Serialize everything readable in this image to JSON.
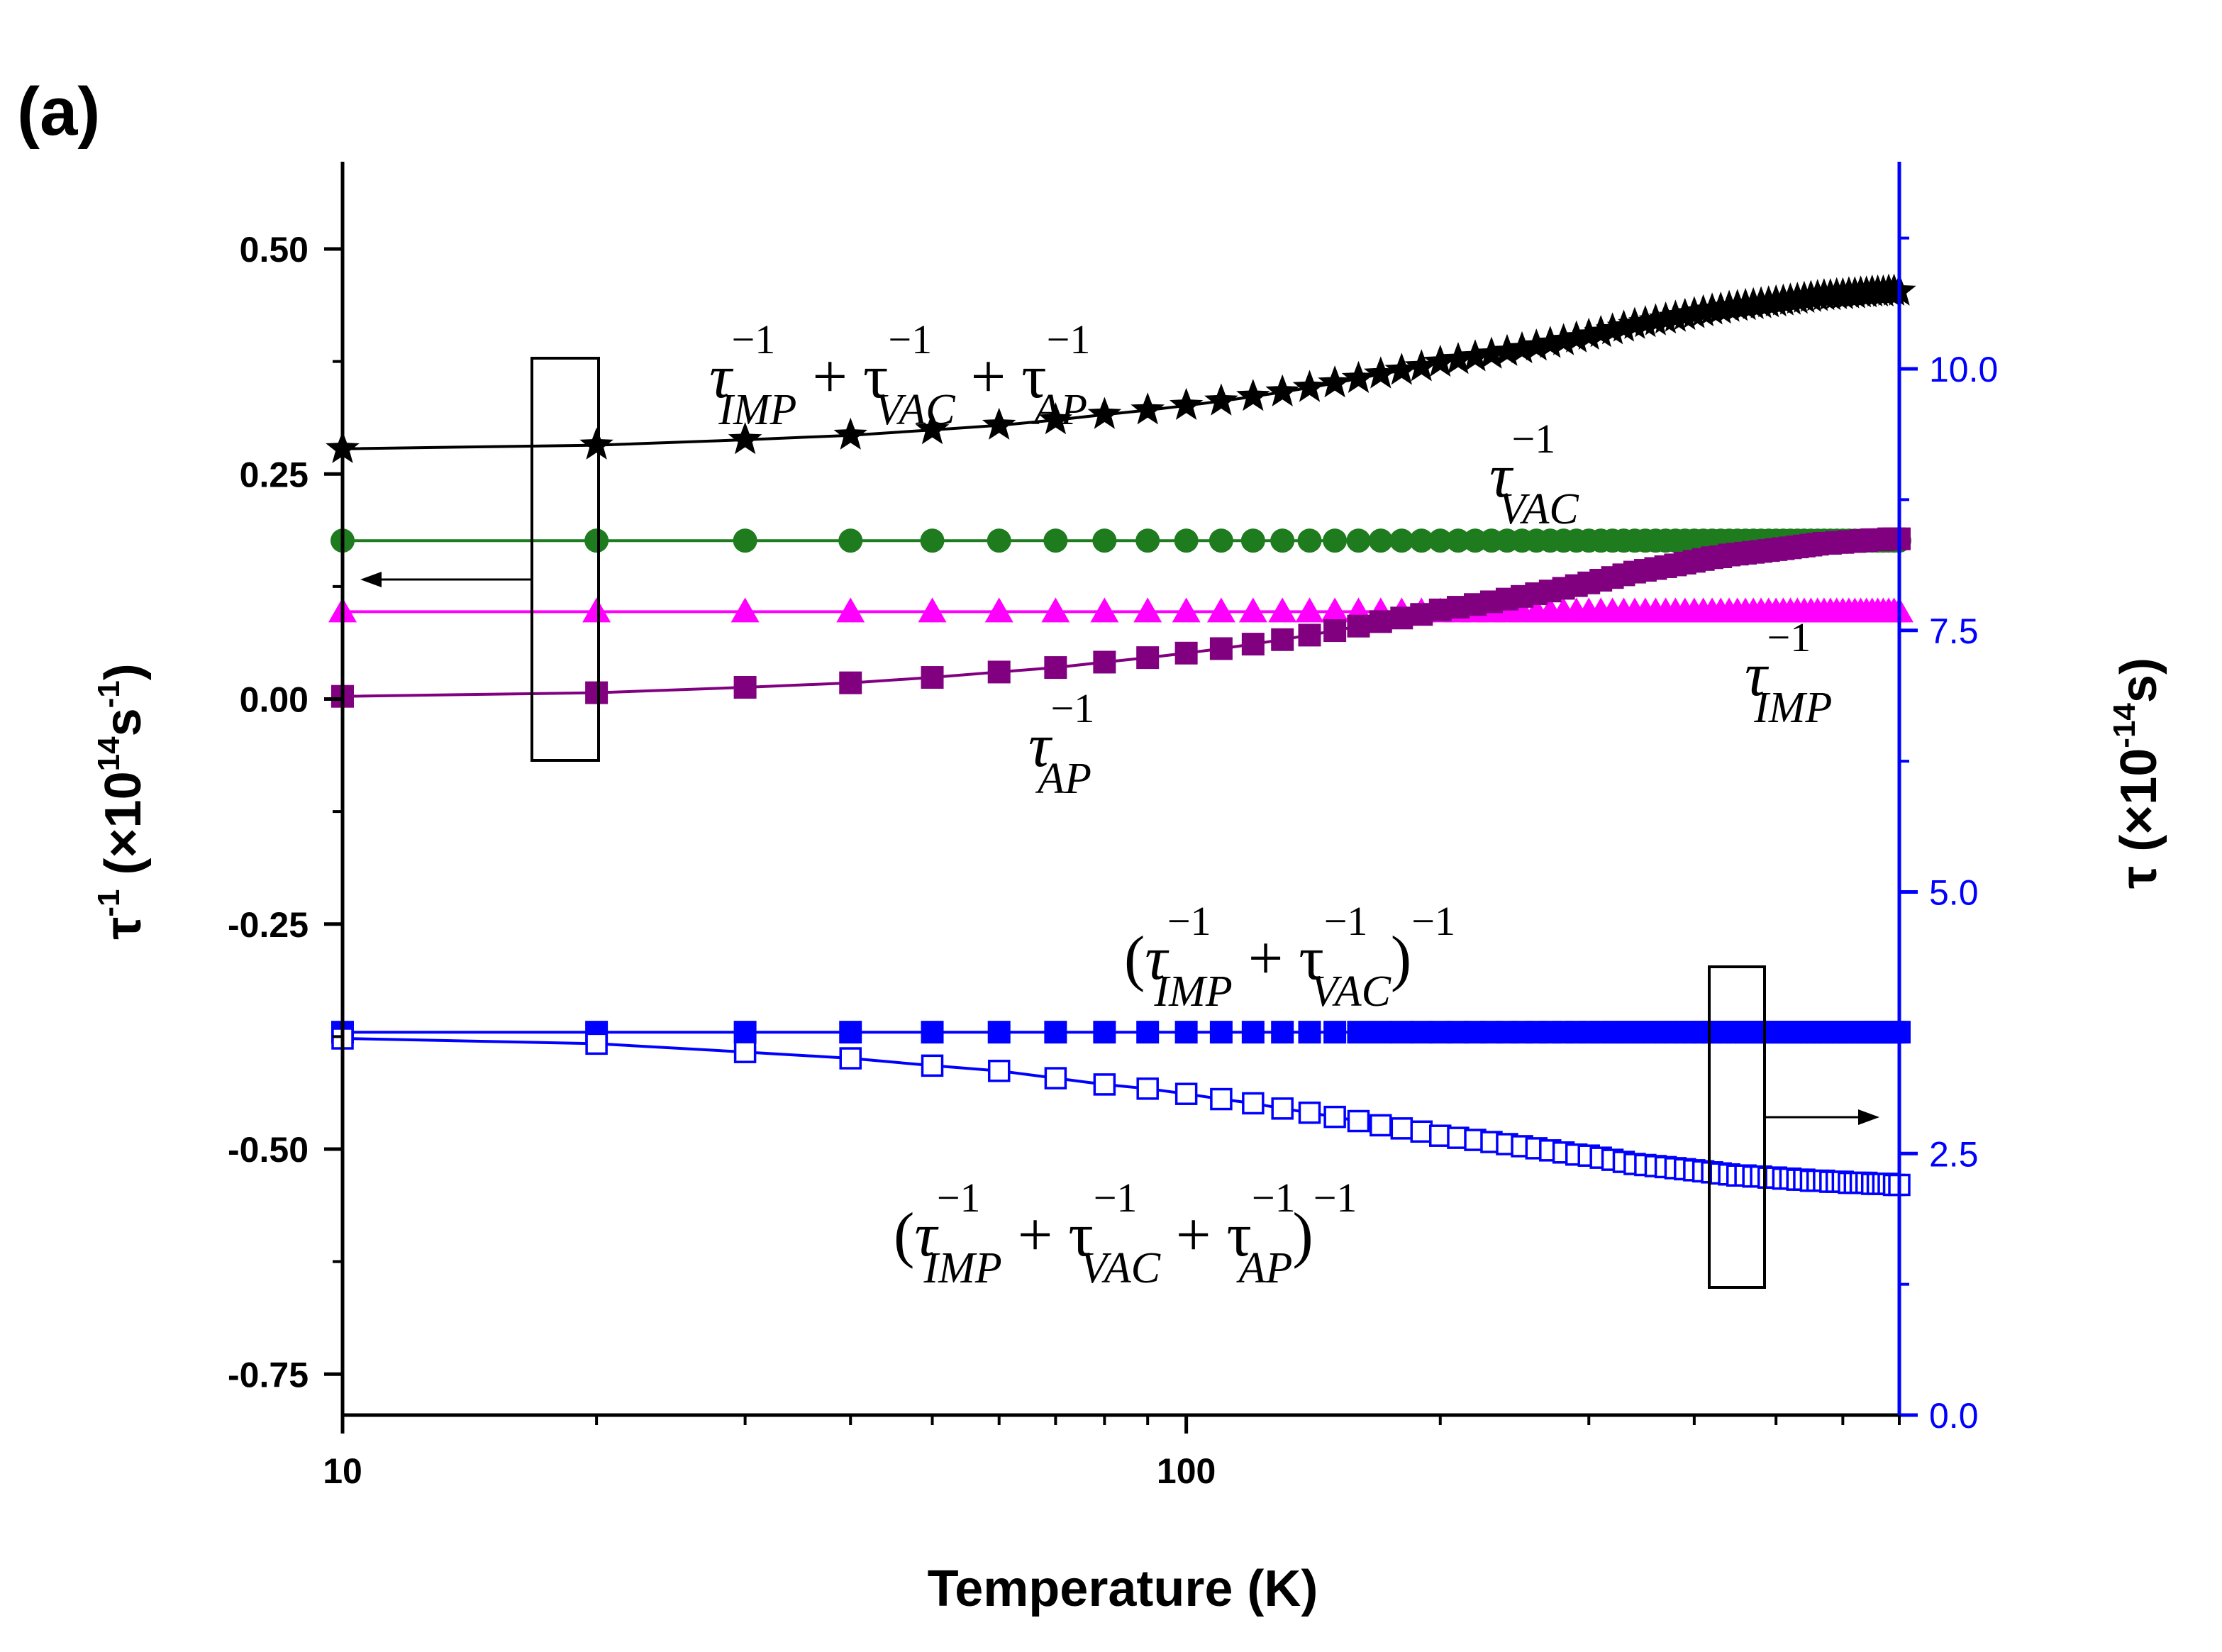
{
  "figure": {
    "panel_label": "(a)"
  },
  "colors": {
    "total_inverse": "#000000",
    "vac_inverse": "#1e7b1e",
    "imp_inverse": "#ff00ff",
    "ap_inverse": "#800080",
    "tau_filled": "#0000ff",
    "tau_open": "#0000ff",
    "right_axis": "#0000ff"
  },
  "chart_data": {
    "type": "line",
    "x_scale": "log",
    "xlabel": "Temperature (K)",
    "xlim": [
      10,
      700
    ],
    "xticks": [
      10,
      100
    ],
    "xtick_labels": [
      "10",
      "100"
    ],
    "ylabel_left": {
      "base": "τ",
      "sup1": "-1",
      "mid": " (×10",
      "sup2": "14",
      "unit": "s",
      "sup3": "-1",
      "end": ")"
    },
    "ylabel_right": {
      "base": "τ (×10",
      "sup": "-14",
      "end": "s)"
    },
    "ylim_left": [
      -0.8,
      0.6
    ],
    "ylim_right": [
      0.0,
      12.0
    ],
    "yticks_left": [
      -0.75,
      -0.5,
      -0.25,
      0.0,
      0.25,
      0.5
    ],
    "ytick_labels_left": [
      "-0.75",
      "-0.50",
      "-0.25",
      "0.00",
      "0.25",
      "0.50"
    ],
    "yticks_right": [
      0.0,
      2.5,
      5.0,
      7.5,
      10.0
    ],
    "ytick_labels_right": [
      "0.0",
      "2.5",
      "5.0",
      "7.5",
      "10.0"
    ],
    "x": [
      10,
      20,
      30,
      40,
      50,
      60,
      70,
      80,
      90,
      100,
      110,
      120,
      130,
      140,
      150,
      160,
      170,
      180,
      190,
      200,
      210,
      220,
      230,
      240,
      250,
      260,
      270,
      280,
      290,
      300,
      310,
      320,
      330,
      340,
      350,
      360,
      370,
      380,
      390,
      400,
      410,
      420,
      430,
      440,
      450,
      460,
      470,
      480,
      490,
      500,
      510,
      520,
      530,
      540,
      550,
      560,
      570,
      580,
      590,
      600,
      610,
      620,
      630,
      640,
      650,
      660,
      670,
      680,
      690,
      700
    ],
    "series": [
      {
        "name": "τ_IMP^-1 + τ_VAC^-1 + τ_AP^-1",
        "axis": "left",
        "marker": "star",
        "filled": true,
        "color_key": "total_inverse",
        "values": [
          0.278,
          0.282,
          0.288,
          0.293,
          0.299,
          0.304,
          0.31,
          0.316,
          0.321,
          0.326,
          0.331,
          0.336,
          0.341,
          0.346,
          0.351,
          0.356,
          0.361,
          0.365,
          0.369,
          0.374,
          0.377,
          0.38,
          0.383,
          0.386,
          0.389,
          0.392,
          0.395,
          0.398,
          0.401,
          0.404,
          0.407,
          0.41,
          0.413,
          0.416,
          0.418,
          0.42,
          0.422,
          0.424,
          0.426,
          0.428,
          0.43,
          0.432,
          0.433,
          0.435,
          0.436,
          0.437,
          0.438,
          0.439,
          0.44,
          0.441,
          0.442,
          0.443,
          0.444,
          0.445,
          0.446,
          0.447,
          0.448,
          0.448,
          0.449,
          0.449,
          0.45,
          0.45,
          0.451,
          0.451,
          0.452,
          0.452,
          0.452,
          0.453,
          0.453,
          0.453
        ]
      },
      {
        "name": "τ_VAC^-1",
        "axis": "left",
        "marker": "circle",
        "filled": true,
        "color_key": "vac_inverse",
        "values": [
          0.176,
          0.176,
          0.176,
          0.176,
          0.176,
          0.176,
          0.176,
          0.176,
          0.176,
          0.176,
          0.176,
          0.176,
          0.176,
          0.176,
          0.176,
          0.176,
          0.176,
          0.176,
          0.176,
          0.176,
          0.176,
          0.176,
          0.176,
          0.176,
          0.176,
          0.176,
          0.176,
          0.176,
          0.176,
          0.176,
          0.176,
          0.176,
          0.176,
          0.176,
          0.176,
          0.176,
          0.176,
          0.176,
          0.176,
          0.176,
          0.176,
          0.176,
          0.176,
          0.176,
          0.176,
          0.176,
          0.176,
          0.176,
          0.176,
          0.176,
          0.176,
          0.176,
          0.176,
          0.176,
          0.176,
          0.176,
          0.176,
          0.176,
          0.176,
          0.176,
          0.176,
          0.176,
          0.176,
          0.176,
          0.176,
          0.176,
          0.176,
          0.176,
          0.176,
          0.176
        ]
      },
      {
        "name": "τ_IMP^-1",
        "axis": "left",
        "marker": "triangle",
        "filled": true,
        "color_key": "imp_inverse",
        "values": [
          0.097,
          0.097,
          0.097,
          0.097,
          0.097,
          0.097,
          0.097,
          0.097,
          0.097,
          0.097,
          0.097,
          0.097,
          0.097,
          0.097,
          0.097,
          0.097,
          0.097,
          0.097,
          0.097,
          0.097,
          0.097,
          0.097,
          0.097,
          0.097,
          0.097,
          0.097,
          0.097,
          0.097,
          0.097,
          0.097,
          0.097,
          0.097,
          0.097,
          0.097,
          0.097,
          0.097,
          0.097,
          0.097,
          0.097,
          0.097,
          0.097,
          0.097,
          0.097,
          0.097,
          0.097,
          0.097,
          0.097,
          0.097,
          0.097,
          0.097,
          0.097,
          0.097,
          0.097,
          0.097,
          0.097,
          0.097,
          0.097,
          0.097,
          0.097,
          0.097,
          0.097,
          0.097,
          0.097,
          0.097,
          0.097,
          0.097,
          0.097,
          0.097,
          0.097,
          0.097
        ]
      },
      {
        "name": "τ_AP^-1",
        "axis": "left",
        "marker": "square",
        "filled": true,
        "color_key": "ap_inverse",
        "values": [
          0.003,
          0.007,
          0.013,
          0.018,
          0.024,
          0.03,
          0.035,
          0.041,
          0.046,
          0.051,
          0.056,
          0.061,
          0.066,
          0.071,
          0.076,
          0.081,
          0.086,
          0.09,
          0.094,
          0.099,
          0.102,
          0.105,
          0.108,
          0.111,
          0.114,
          0.117,
          0.12,
          0.123,
          0.126,
          0.129,
          0.132,
          0.135,
          0.138,
          0.141,
          0.143,
          0.145,
          0.147,
          0.149,
          0.151,
          0.153,
          0.155,
          0.157,
          0.158,
          0.16,
          0.161,
          0.162,
          0.163,
          0.164,
          0.165,
          0.166,
          0.167,
          0.168,
          0.169,
          0.17,
          0.171,
          0.172,
          0.173,
          0.173,
          0.174,
          0.174,
          0.175,
          0.175,
          0.176,
          0.176,
          0.177,
          0.177,
          0.177,
          0.178,
          0.178,
          0.178
        ]
      },
      {
        "name": "(τ_IMP^-1 + τ_VAC^-1)^-1",
        "axis": "right",
        "marker": "square",
        "filled": true,
        "color_key": "tau_filled",
        "values": [
          3.66,
          3.66,
          3.66,
          3.66,
          3.66,
          3.66,
          3.66,
          3.66,
          3.66,
          3.66,
          3.66,
          3.66,
          3.66,
          3.66,
          3.66,
          3.66,
          3.66,
          3.66,
          3.66,
          3.66,
          3.66,
          3.66,
          3.66,
          3.66,
          3.66,
          3.66,
          3.66,
          3.66,
          3.66,
          3.66,
          3.66,
          3.66,
          3.66,
          3.66,
          3.66,
          3.66,
          3.66,
          3.66,
          3.66,
          3.66,
          3.66,
          3.66,
          3.66,
          3.66,
          3.66,
          3.66,
          3.66,
          3.66,
          3.66,
          3.66,
          3.66,
          3.66,
          3.66,
          3.66,
          3.66,
          3.66,
          3.66,
          3.66,
          3.66,
          3.66,
          3.66,
          3.66,
          3.66,
          3.66,
          3.66,
          3.66,
          3.66,
          3.66,
          3.66,
          3.66
        ]
      },
      {
        "name": "(τ_IMP^-1 + τ_VAC^-1 + τ_AP^-1)^-1",
        "axis": "right",
        "marker": "square",
        "filled": false,
        "color_key": "tau_open",
        "values": [
          3.6,
          3.55,
          3.47,
          3.41,
          3.34,
          3.29,
          3.22,
          3.16,
          3.12,
          3.07,
          3.02,
          2.98,
          2.93,
          2.89,
          2.85,
          2.81,
          2.77,
          2.74,
          2.71,
          2.67,
          2.65,
          2.63,
          2.61,
          2.59,
          2.57,
          2.55,
          2.53,
          2.51,
          2.49,
          2.48,
          2.46,
          2.44,
          2.42,
          2.4,
          2.39,
          2.38,
          2.37,
          2.36,
          2.35,
          2.34,
          2.33,
          2.32,
          2.31,
          2.3,
          2.29,
          2.29,
          2.28,
          2.28,
          2.27,
          2.27,
          2.26,
          2.26,
          2.25,
          2.25,
          2.24,
          2.24,
          2.24,
          2.23,
          2.23,
          2.23,
          2.22,
          2.22,
          2.22,
          2.22,
          2.21,
          2.21,
          2.21,
          2.21,
          2.2,
          2.2
        ]
      }
    ],
    "annotations": [
      {
        "id": "total",
        "pre": "τ",
        "sub": "IMP",
        "sup": "−1",
        "parts": [
          {
            "op": " + τ",
            "sub": "VAC",
            "sup": "−1"
          },
          {
            "op": " + τ",
            "sub": "AP",
            "sup": "−1"
          }
        ]
      },
      {
        "id": "vac",
        "pre": "τ",
        "sub": "VAC",
        "sup": "−1"
      },
      {
        "id": "imp",
        "pre": "τ",
        "sub": "IMP",
        "sup": "−1"
      },
      {
        "id": "ap",
        "pre": "τ",
        "sub": "AP",
        "sup": "−1"
      },
      {
        "id": "tau_filled",
        "text": "(τ_IMP^−1 + τ_VAC^−1)^−1"
      },
      {
        "id": "tau_open",
        "text": "(τ_IMP^−1 + τ_VAC^−1 + τ_AP^−1)^−1"
      }
    ]
  }
}
